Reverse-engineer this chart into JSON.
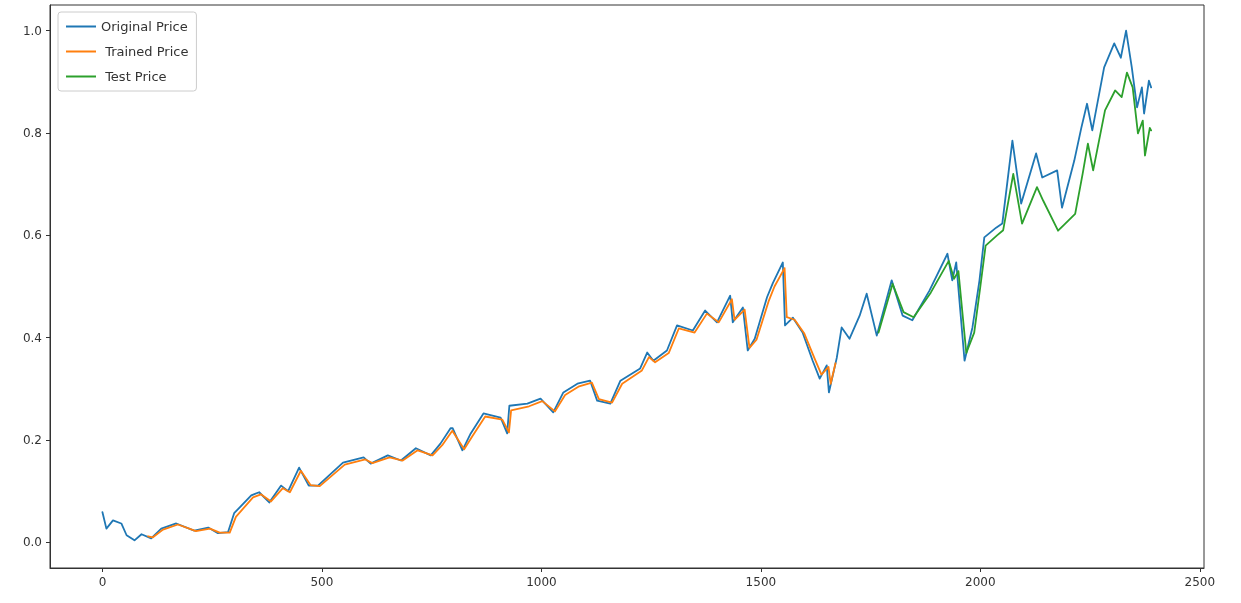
{
  "chart_data": {
    "type": "line",
    "xlim": [
      -119.5,
      2509.5
    ],
    "ylim": [
      -0.05,
      1.05
    ],
    "xticks": [
      0,
      500,
      1000,
      1500,
      2000,
      2500
    ],
    "yticks": [
      {
        "value": 0,
        "label": "0.0"
      },
      0.2,
      0.4,
      0.6,
      0.8,
      {
        "value": 1,
        "label": "1.0"
      }
    ],
    "grid": false,
    "legend": "top left",
    "marker": "none",
    "line_style": "solid",
    "series": [
      {
        "name": "Original Price",
        "color": "#1f77b4",
        "x": [
          0,
          9,
          24,
          43,
          55,
          73,
          89,
          111,
          134,
          168,
          209,
          241,
          263,
          286,
          300,
          339,
          357,
          380,
          407,
          423,
          448,
          470,
          491,
          548,
          595,
          611,
          650,
          680,
          714,
          748,
          770,
          793,
          798,
          820,
          839,
          868,
          907,
          922,
          927,
          968,
          998,
          1027,
          1050,
          1082,
          1111,
          1127,
          1157,
          1180,
          1225,
          1241,
          1255,
          1286,
          1309,
          1345,
          1373,
          1400,
          1430,
          1436,
          1459,
          1470,
          1486,
          1514,
          1527,
          1550,
          1555,
          1573,
          1595,
          1618,
          1634,
          1650,
          1655,
          1673,
          1684,
          1702,
          1725,
          1741,
          1764,
          1798,
          1823,
          1845,
          1884,
          1925,
          1936,
          1945,
          1964,
          1982,
          1998,
          2009,
          2036,
          2050,
          2073,
          2093,
          2127,
          2141,
          2175,
          2186,
          2214,
          2230,
          2243,
          2255,
          2282,
          2305,
          2320,
          2332,
          2345,
          2357,
          2368,
          2373,
          2384,
          2389
        ],
        "values": [
          0.059,
          0.027,
          0.043,
          0.037,
          0.014,
          0.004,
          0.016,
          0.008,
          0.027,
          0.037,
          0.023,
          0.029,
          0.018,
          0.02,
          0.057,
          0.092,
          0.098,
          0.078,
          0.111,
          0.1,
          0.146,
          0.111,
          0.111,
          0.156,
          0.166,
          0.154,
          0.17,
          0.16,
          0.184,
          0.17,
          0.193,
          0.223,
          0.223,
          0.18,
          0.213,
          0.252,
          0.244,
          0.213,
          0.267,
          0.271,
          0.281,
          0.254,
          0.293,
          0.31,
          0.316,
          0.277,
          0.271,
          0.316,
          0.34,
          0.371,
          0.355,
          0.375,
          0.424,
          0.414,
          0.453,
          0.43,
          0.482,
          0.43,
          0.459,
          0.375,
          0.398,
          0.479,
          0.506,
          0.547,
          0.424,
          0.439,
          0.41,
          0.355,
          0.32,
          0.346,
          0.293,
          0.361,
          0.42,
          0.398,
          0.443,
          0.486,
          0.404,
          0.512,
          0.443,
          0.434,
          0.492,
          0.564,
          0.512,
          0.547,
          0.355,
          0.42,
          0.512,
          0.596,
          0.615,
          0.623,
          0.785,
          0.662,
          0.76,
          0.713,
          0.727,
          0.654,
          0.746,
          0.81,
          0.857,
          0.805,
          0.928,
          0.975,
          0.947,
          1.0,
          0.928,
          0.85,
          0.889,
          0.838,
          0.902,
          0.889
        ]
      },
      {
        "name": " Trained Price",
        "color": "#ff7f0e",
        "x": [
          104,
          115,
          138,
          172,
          213,
          245,
          267,
          290,
          304,
          343,
          361,
          384,
          411,
          427,
          452,
          474,
          495,
          552,
          599,
          615,
          654,
          684,
          718,
          752,
          774,
          797,
          824,
          843,
          872,
          911,
          926,
          931,
          972,
          1002,
          1031,
          1054,
          1086,
          1115,
          1131,
          1161,
          1184,
          1229,
          1245,
          1259,
          1290,
          1313,
          1349,
          1377,
          1404,
          1434,
          1440,
          1463,
          1474,
          1490,
          1518,
          1531,
          1554,
          1559,
          1577,
          1599,
          1622,
          1638,
          1654,
          1659,
          1670
        ],
        "values": [
          0.012,
          0.01,
          0.025,
          0.035,
          0.022,
          0.027,
          0.019,
          0.019,
          0.05,
          0.088,
          0.094,
          0.08,
          0.106,
          0.098,
          0.14,
          0.112,
          0.11,
          0.152,
          0.162,
          0.155,
          0.166,
          0.16,
          0.18,
          0.17,
          0.19,
          0.218,
          0.182,
          0.208,
          0.246,
          0.24,
          0.215,
          0.258,
          0.266,
          0.276,
          0.256,
          0.288,
          0.305,
          0.312,
          0.28,
          0.273,
          0.31,
          0.336,
          0.362,
          0.352,
          0.37,
          0.418,
          0.41,
          0.447,
          0.43,
          0.475,
          0.435,
          0.455,
          0.38,
          0.396,
          0.472,
          0.5,
          0.536,
          0.44,
          0.435,
          0.408,
          0.36,
          0.328,
          0.343,
          0.31,
          0.35
        ]
      },
      {
        "name": " Test Price",
        "color": "#2ca02c",
        "x": [
          1768,
          1800,
          1825,
          1848,
          1887,
          1928,
          1940,
          1950,
          1968,
          1986,
          2000,
          2012,
          2038,
          2052,
          2075,
          2095,
          2129,
          2143,
          2177,
          2190,
          2216,
          2233,
          2245,
          2257,
          2284,
          2307,
          2322,
          2334,
          2347,
          2359,
          2370,
          2375,
          2386,
          2389
        ],
        "values": [
          0.41,
          0.505,
          0.45,
          0.44,
          0.488,
          0.55,
          0.515,
          0.53,
          0.37,
          0.41,
          0.5,
          0.58,
          0.6,
          0.61,
          0.72,
          0.623,
          0.694,
          0.668,
          0.609,
          0.62,
          0.642,
          0.72,
          0.779,
          0.727,
          0.844,
          0.883,
          0.87,
          0.918,
          0.889,
          0.799,
          0.824,
          0.756,
          0.81,
          0.805
        ]
      }
    ]
  }
}
